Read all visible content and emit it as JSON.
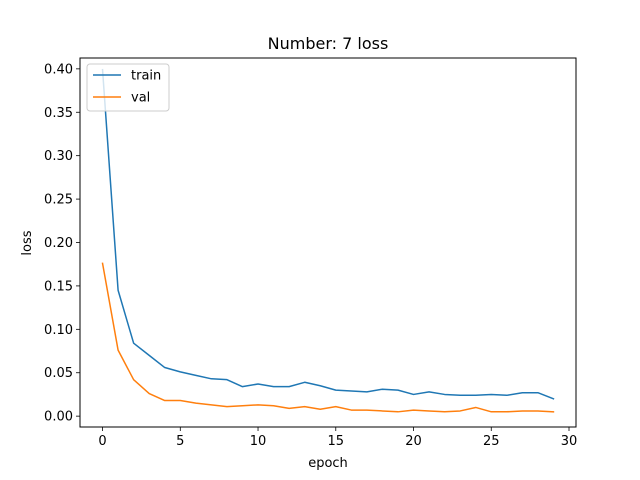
{
  "chart_data": {
    "type": "line",
    "title": "Number: 7 loss",
    "xlabel": "epoch",
    "ylabel": "loss",
    "xlim": [
      -1.45,
      30.45
    ],
    "ylim": [
      -0.0125,
      0.4125
    ],
    "xticks": [
      0,
      5,
      10,
      15,
      20,
      25,
      30
    ],
    "yticks": [
      0.0,
      0.05,
      0.1,
      0.15,
      0.2,
      0.25,
      0.3,
      0.35,
      0.4
    ],
    "ytick_labels": [
      "0.00",
      "0.05",
      "0.10",
      "0.15",
      "0.20",
      "0.25",
      "0.30",
      "0.35",
      "0.40"
    ],
    "grid": false,
    "legend_position": "upper-left",
    "x": [
      0,
      1,
      2,
      3,
      4,
      5,
      6,
      7,
      8,
      9,
      10,
      11,
      12,
      13,
      14,
      15,
      16,
      17,
      18,
      19,
      20,
      21,
      22,
      23,
      24,
      25,
      26,
      27,
      28,
      29
    ],
    "series": [
      {
        "name": "train",
        "color": "#1f77b4",
        "values": [
          0.399,
          0.145,
          0.084,
          0.07,
          0.056,
          0.051,
          0.047,
          0.043,
          0.042,
          0.034,
          0.037,
          0.034,
          0.034,
          0.039,
          0.035,
          0.03,
          0.029,
          0.028,
          0.031,
          0.03,
          0.025,
          0.028,
          0.025,
          0.024,
          0.024,
          0.025,
          0.024,
          0.027,
          0.027,
          0.02
        ]
      },
      {
        "name": "val",
        "color": "#ff7f0e",
        "values": [
          0.176,
          0.076,
          0.042,
          0.026,
          0.018,
          0.018,
          0.015,
          0.013,
          0.011,
          0.012,
          0.013,
          0.012,
          0.009,
          0.011,
          0.008,
          0.011,
          0.007,
          0.007,
          0.006,
          0.005,
          0.007,
          0.006,
          0.005,
          0.006,
          0.01,
          0.005,
          0.005,
          0.006,
          0.006,
          0.005
        ]
      }
    ]
  }
}
